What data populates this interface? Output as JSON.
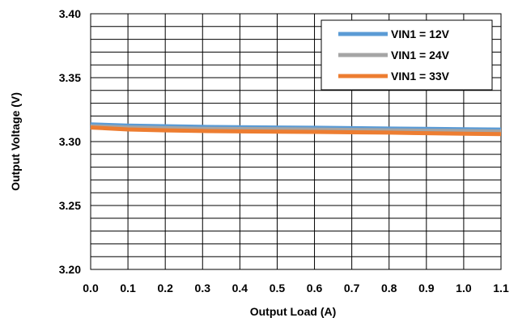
{
  "chart_data": {
    "type": "line",
    "xlabel": "Output Load (A)",
    "ylabel": "Output Voltage (V)",
    "xlim": [
      0,
      1.1
    ],
    "ylim": [
      3.2,
      3.4
    ],
    "x_ticks": [
      "0.0",
      "0.1",
      "0.2",
      "0.3",
      "0.4",
      "0.5",
      "0.6",
      "0.7",
      "0.8",
      "0.9",
      "1.0",
      "1.1"
    ],
    "y_ticks": [
      "3.20",
      "3.25",
      "3.30",
      "3.35",
      "3.40"
    ],
    "grid": true,
    "legend_position": "top-right",
    "x": [
      0.0,
      0.1,
      0.2,
      0.3,
      0.4,
      0.5,
      0.6,
      0.7,
      0.8,
      0.9,
      1.0,
      1.1
    ],
    "series": [
      {
        "name": "VIN1 = 12V",
        "color": "#5B9BD5",
        "values": [
          3.3135,
          3.3125,
          3.312,
          3.3115,
          3.3112,
          3.311,
          3.3108,
          3.3105,
          3.3102,
          3.31,
          3.3097,
          3.3094
        ]
      },
      {
        "name": "VIN1 = 24V",
        "color": "#A5A5A5",
        "values": [
          3.312,
          3.311,
          3.3105,
          3.31,
          3.3098,
          3.3096,
          3.3094,
          3.3091,
          3.3088,
          3.3085,
          3.3082,
          3.3079
        ]
      },
      {
        "name": "VIN1 = 33V",
        "color": "#ED7D31",
        "values": [
          3.311,
          3.3095,
          3.3088,
          3.3083,
          3.308,
          3.3078,
          3.3076,
          3.3073,
          3.307,
          3.3066,
          3.3062,
          3.3058
        ]
      }
    ]
  }
}
